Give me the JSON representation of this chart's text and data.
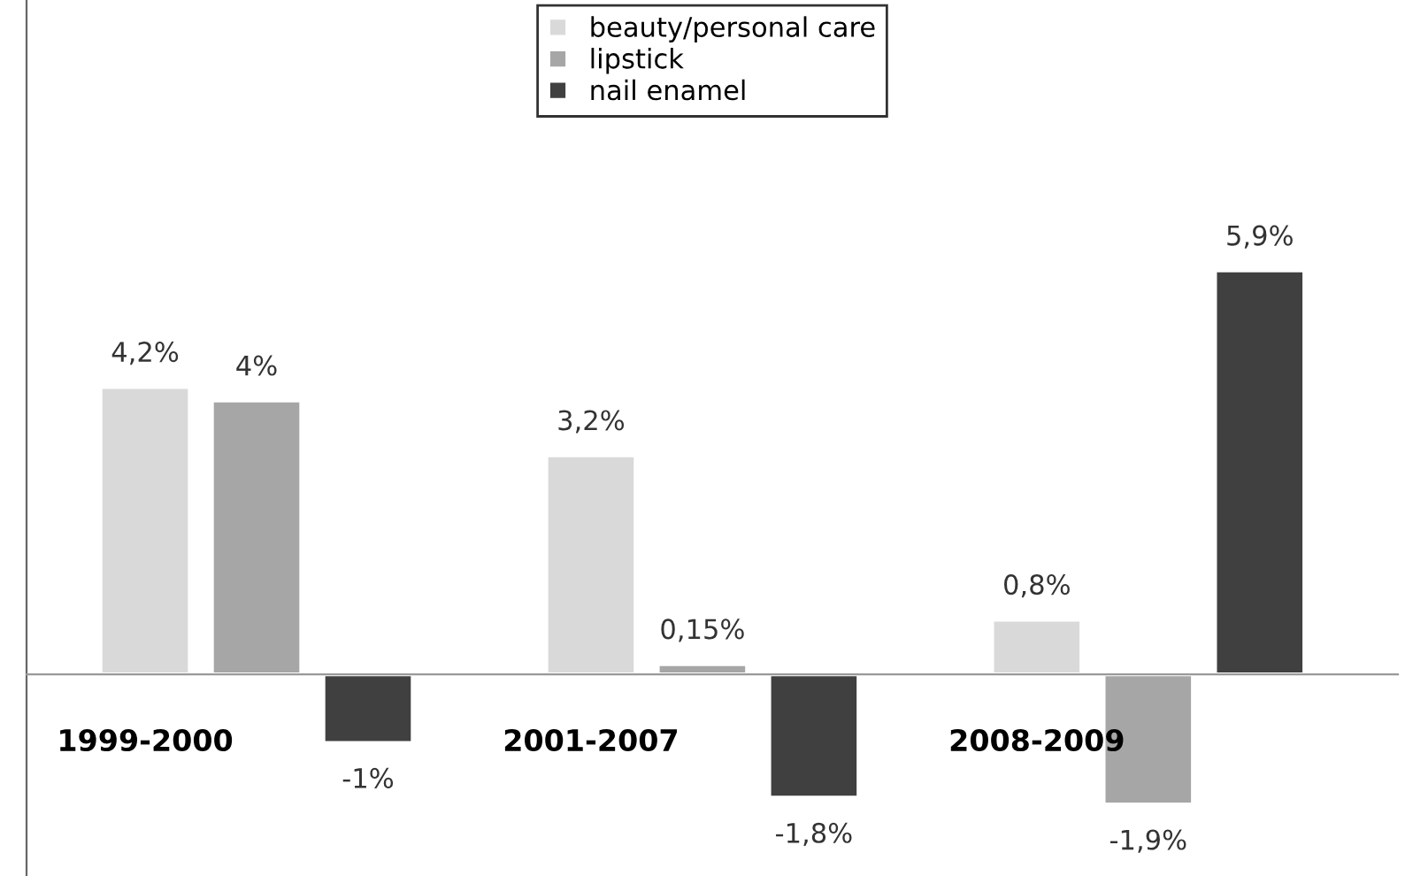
{
  "chart_data": {
    "type": "bar",
    "categories": [
      "1999-2000",
      "2001-2007",
      "2008-2009"
    ],
    "series": [
      {
        "name": "beauty/personal care",
        "color": "#d9d9d9",
        "values": [
          4.2,
          3.2,
          0.8
        ],
        "value_labels": [
          "4,2%",
          "3,2%",
          "0,8%"
        ]
      },
      {
        "name": "lipstick",
        "color": "#a6a6a6",
        "values": [
          4,
          0.15,
          -1.9
        ],
        "value_labels": [
          "4%",
          "0,15%",
          "-1,9%"
        ]
      },
      {
        "name": "nail enamel",
        "color": "#404040",
        "values": [
          -1,
          -1.8,
          5.9
        ],
        "value_labels": [
          "-1%",
          "-1,8%",
          "5,9%"
        ]
      }
    ],
    "legend": "top",
    "tick_labels": "x"
  }
}
